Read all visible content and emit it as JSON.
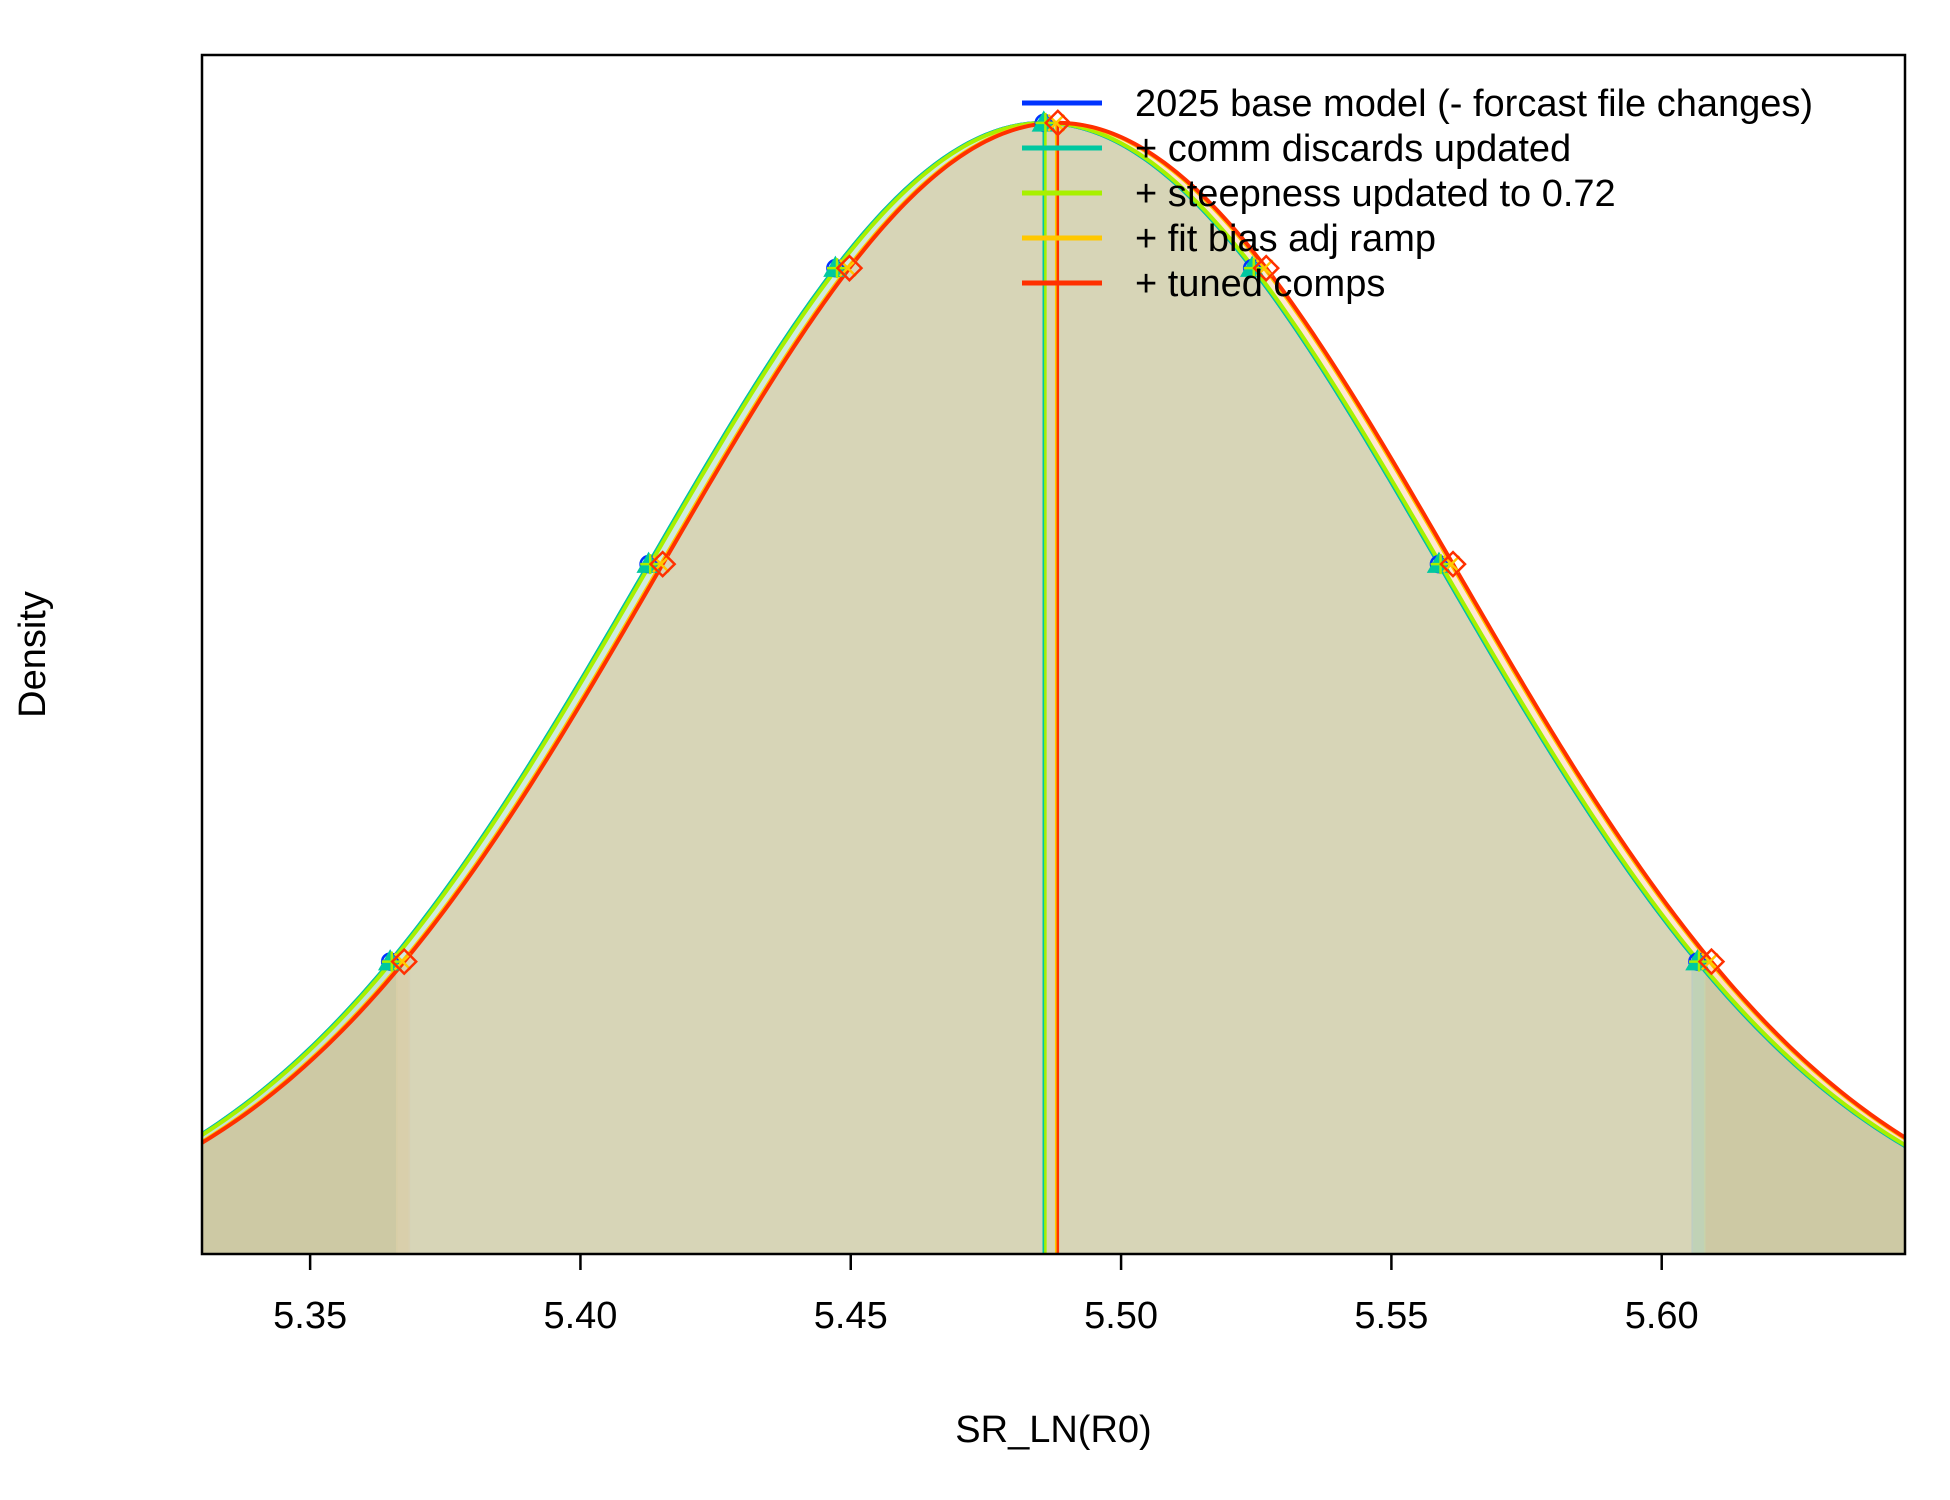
{
  "chart_data": {
    "type": "line",
    "title": "",
    "xlabel": "SR_LN(R0)",
    "ylabel": "Density",
    "xlim": [
      5.33,
      5.645
    ],
    "ylim": [
      0,
      1.06
    ],
    "x_ticks": [
      5.35,
      5.4,
      5.45,
      5.5,
      5.55,
      5.6
    ],
    "x_tick_labels": [
      "5.35",
      "5.40",
      "5.45",
      "5.50",
      "5.55",
      "5.60"
    ],
    "y_ticks_shown": false,
    "grid": false,
    "legend_position": "top-right",
    "density_normalized_to_peak": true,
    "series": [
      {
        "name": "2025 base model (- forcast file changes)",
        "color": "#0033ff",
        "mean": 5.4857,
        "sd": 0.0735,
        "ci_95": [
          5.3659,
          5.6055
        ],
        "marker": "circle"
      },
      {
        "name": "+ comm discards updated",
        "color": "#00c8a0",
        "mean": 5.4857,
        "sd": 0.0735,
        "ci_95": [
          5.3659,
          5.6055
        ],
        "marker": "triangle"
      },
      {
        "name": "+ steepness updated to 0.72",
        "color": "#a8f000",
        "mean": 5.486,
        "sd": 0.0735,
        "ci_95": [
          5.3662,
          5.6058
        ],
        "marker": "plus"
      },
      {
        "name": "+ fit bias adj ramp",
        "color": "#ffc800",
        "mean": 5.488,
        "sd": 0.0735,
        "ci_95": [
          5.3682,
          5.6078
        ],
        "marker": "cross"
      },
      {
        "name": "+ tuned comps",
        "color": "#ff3000",
        "mean": 5.4883,
        "sd": 0.0735,
        "ci_95": [
          5.3685,
          5.6081
        ],
        "marker": "diamond"
      }
    ]
  }
}
